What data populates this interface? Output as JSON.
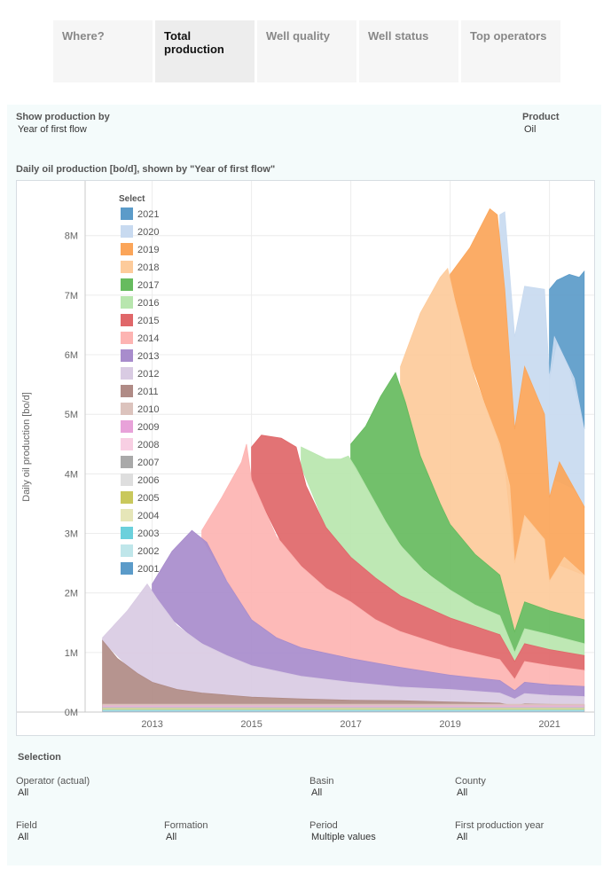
{
  "tabs": [
    {
      "label": "Where?",
      "active": false
    },
    {
      "label": "Total production",
      "active": true
    },
    {
      "label": "Well quality",
      "active": false
    },
    {
      "label": "Well status",
      "active": false
    },
    {
      "label": "Top operators",
      "active": false
    }
  ],
  "controls": {
    "show_by_label": "Show production by",
    "show_by_value": "Year of first flow",
    "product_label": "Product",
    "product_value": "Oil"
  },
  "chart_title": "Daily oil production [bo/d], shown by \"Year of first flow\"",
  "selection": {
    "title": "Selection",
    "filters": [
      {
        "label": "Operator (actual)",
        "value": "All"
      },
      {
        "label": "Basin",
        "value": "All"
      },
      {
        "label": "County",
        "value": "All"
      },
      {
        "label": "Field",
        "value": "All"
      },
      {
        "label": "Formation",
        "value": "All"
      },
      {
        "label": "Period",
        "value": "Multiple values"
      },
      {
        "label": "First production year",
        "value": "All"
      }
    ]
  },
  "chart_data": {
    "type": "area",
    "stacked": true,
    "ylabel": "Daily oil production [bo/d]",
    "xlabel": "",
    "x_unit": "year",
    "xlim": [
      2011.65,
      2021.9
    ],
    "ylim": [
      0,
      8800000
    ],
    "x_ticks": [
      2013,
      2015,
      2017,
      2019,
      2021
    ],
    "x_tick_labels": [
      "2013",
      "2015",
      "2017",
      "2019",
      "2021"
    ],
    "y_ticks": [
      0,
      1000000,
      2000000,
      3000000,
      4000000,
      5000000,
      6000000,
      7000000,
      8000000
    ],
    "y_tick_labels": [
      "0M",
      "1M",
      "2M",
      "3M",
      "4M",
      "5M",
      "6M",
      "7M",
      "8M"
    ],
    "grid": true,
    "legend_title": "Select",
    "legend_position": "top-left",
    "series": [
      {
        "name": "2021",
        "color": "#5b9bc9"
      },
      {
        "name": "2020",
        "color": "#c8daf0"
      },
      {
        "name": "2019",
        "color": "#fba559"
      },
      {
        "name": "2018",
        "color": "#fdcb9b"
      },
      {
        "name": "2017",
        "color": "#66bb5e"
      },
      {
        "name": "2016",
        "color": "#b8e6ae"
      },
      {
        "name": "2015",
        "color": "#e06769"
      },
      {
        "name": "2014",
        "color": "#fdb4b2"
      },
      {
        "name": "2013",
        "color": "#a88ccc"
      },
      {
        "name": "2012",
        "color": "#d9cbe3"
      },
      {
        "name": "2011",
        "color": "#b08b86"
      },
      {
        "name": "2010",
        "color": "#dcc3bd"
      },
      {
        "name": "2009",
        "color": "#e8a2d9"
      },
      {
        "name": "2008",
        "color": "#f8cfe3"
      },
      {
        "name": "2007",
        "color": "#a9a9a9"
      },
      {
        "name": "2006",
        "color": "#dedede"
      },
      {
        "name": "2005",
        "color": "#c9c85c"
      },
      {
        "name": "2004",
        "color": "#e6e6b8"
      },
      {
        "name": "2003",
        "color": "#6bd0dc"
      },
      {
        "name": "2002",
        "color": "#bfe6ea"
      },
      {
        "name": "2001",
        "color": "#5b9bc9"
      }
    ],
    "cumulative_tops": [
      {
        "series": "2011",
        "points": [
          [
            2012.0,
            1200000
          ],
          [
            2012.3,
            900000
          ],
          [
            2012.7,
            650000
          ],
          [
            2013.0,
            500000
          ],
          [
            2013.5,
            380000
          ],
          [
            2014.0,
            320000
          ],
          [
            2015.0,
            250000
          ],
          [
            2016.0,
            220000
          ],
          [
            2017.0,
            200000
          ],
          [
            2018.0,
            190000
          ],
          [
            2019.0,
            170000
          ],
          [
            2020.0,
            150000
          ],
          [
            2020.3,
            100000
          ],
          [
            2020.5,
            140000
          ],
          [
            2021.0,
            130000
          ],
          [
            2021.7,
            120000
          ]
        ]
      },
      {
        "series": "2012",
        "points": [
          [
            2012.0,
            1250000
          ],
          [
            2012.5,
            1700000
          ],
          [
            2012.9,
            2150000
          ],
          [
            2013.1,
            1900000
          ],
          [
            2013.5,
            1450000
          ],
          [
            2014.0,
            1150000
          ],
          [
            2014.5,
            950000
          ],
          [
            2015.0,
            780000
          ],
          [
            2016.0,
            600000
          ],
          [
            2017.0,
            500000
          ],
          [
            2018.0,
            420000
          ],
          [
            2019.0,
            380000
          ],
          [
            2020.0,
            320000
          ],
          [
            2020.3,
            220000
          ],
          [
            2020.5,
            310000
          ],
          [
            2021.0,
            280000
          ],
          [
            2021.7,
            260000
          ]
        ]
      },
      {
        "series": "2013",
        "points": [
          [
            2013.0,
            2150000
          ],
          [
            2013.4,
            2700000
          ],
          [
            2013.8,
            3050000
          ],
          [
            2014.1,
            2850000
          ],
          [
            2014.5,
            2200000
          ],
          [
            2015.0,
            1550000
          ],
          [
            2015.5,
            1250000
          ],
          [
            2016.0,
            1080000
          ],
          [
            2017.0,
            900000
          ],
          [
            2018.0,
            750000
          ],
          [
            2019.0,
            620000
          ],
          [
            2020.0,
            530000
          ],
          [
            2020.3,
            360000
          ],
          [
            2020.5,
            500000
          ],
          [
            2021.0,
            460000
          ],
          [
            2021.7,
            430000
          ]
        ]
      },
      {
        "series": "2014",
        "points": [
          [
            2014.0,
            3050000
          ],
          [
            2014.4,
            3600000
          ],
          [
            2014.8,
            4200000
          ],
          [
            2014.9,
            4500000
          ],
          [
            2015.0,
            3900000
          ],
          [
            2015.5,
            2950000
          ],
          [
            2016.0,
            2450000
          ],
          [
            2016.5,
            2080000
          ],
          [
            2017.0,
            1850000
          ],
          [
            2017.5,
            1550000
          ],
          [
            2018.0,
            1350000
          ],
          [
            2019.0,
            1080000
          ],
          [
            2020.0,
            880000
          ],
          [
            2020.3,
            550000
          ],
          [
            2020.5,
            850000
          ],
          [
            2021.0,
            780000
          ],
          [
            2021.7,
            700000
          ]
        ]
      },
      {
        "series": "2015",
        "points": [
          [
            2015.0,
            4450000
          ],
          [
            2015.2,
            4650000
          ],
          [
            2015.6,
            4600000
          ],
          [
            2015.9,
            4450000
          ],
          [
            2016.1,
            3800000
          ],
          [
            2016.5,
            3100000
          ],
          [
            2017.0,
            2600000
          ],
          [
            2017.5,
            2250000
          ],
          [
            2018.0,
            1950000
          ],
          [
            2019.0,
            1580000
          ],
          [
            2020.0,
            1300000
          ],
          [
            2020.3,
            850000
          ],
          [
            2020.5,
            1150000
          ],
          [
            2021.0,
            1050000
          ],
          [
            2021.7,
            950000
          ]
        ]
      },
      {
        "series": "2016",
        "points": [
          [
            2016.0,
            4450000
          ],
          [
            2016.5,
            4250000
          ],
          [
            2016.8,
            4250000
          ],
          [
            2016.95,
            4300000
          ],
          [
            2017.1,
            4100000
          ],
          [
            2017.3,
            3800000
          ],
          [
            2017.7,
            3200000
          ],
          [
            2018.0,
            2800000
          ],
          [
            2018.5,
            2350000
          ],
          [
            2019.0,
            2050000
          ],
          [
            2019.5,
            1800000
          ],
          [
            2020.0,
            1620000
          ],
          [
            2020.3,
            1000000
          ],
          [
            2020.5,
            1400000
          ],
          [
            2021.0,
            1300000
          ],
          [
            2021.7,
            1150000
          ]
        ]
      },
      {
        "series": "2017",
        "points": [
          [
            2017.0,
            4500000
          ],
          [
            2017.3,
            4800000
          ],
          [
            2017.6,
            5300000
          ],
          [
            2017.9,
            5700000
          ],
          [
            2018.1,
            5200000
          ],
          [
            2018.4,
            4300000
          ],
          [
            2018.8,
            3500000
          ],
          [
            2019.0,
            3150000
          ],
          [
            2019.5,
            2650000
          ],
          [
            2020.0,
            2300000
          ],
          [
            2020.3,
            1350000
          ],
          [
            2020.5,
            1850000
          ],
          [
            2021.0,
            1700000
          ],
          [
            2021.7,
            1550000
          ]
        ]
      },
      {
        "series": "2018",
        "points": [
          [
            2018.0,
            5800000
          ],
          [
            2018.4,
            6700000
          ],
          [
            2018.8,
            7300000
          ],
          [
            2018.95,
            7450000
          ],
          [
            2019.1,
            6900000
          ],
          [
            2019.5,
            5600000
          ],
          [
            2020.0,
            4500000
          ],
          [
            2020.2,
            3800000
          ],
          [
            2020.3,
            2500000
          ],
          [
            2020.5,
            3300000
          ],
          [
            2020.9,
            2900000
          ],
          [
            2021.0,
            2200000
          ],
          [
            2021.3,
            2600000
          ],
          [
            2021.7,
            2300000
          ]
        ]
      },
      {
        "series": "2019",
        "points": [
          [
            2019.0,
            7350000
          ],
          [
            2019.4,
            7800000
          ],
          [
            2019.8,
            8450000
          ],
          [
            2019.95,
            8350000
          ],
          [
            2020.1,
            7100000
          ],
          [
            2020.3,
            4750000
          ],
          [
            2020.5,
            5800000
          ],
          [
            2020.9,
            5000000
          ],
          [
            2021.0,
            3600000
          ],
          [
            2021.2,
            4200000
          ],
          [
            2021.7,
            3450000
          ]
        ]
      },
      {
        "series": "2020",
        "points": [
          [
            2020.0,
            8350000
          ],
          [
            2020.1,
            8400000
          ],
          [
            2020.3,
            6300000
          ],
          [
            2020.5,
            7150000
          ],
          [
            2020.9,
            7100000
          ],
          [
            2021.0,
            5600000
          ],
          [
            2021.1,
            6300000
          ],
          [
            2021.5,
            5600000
          ],
          [
            2021.7,
            4750000
          ]
        ]
      },
      {
        "series": "2021",
        "points": [
          [
            2021.0,
            7100000
          ],
          [
            2021.15,
            7250000
          ],
          [
            2021.4,
            7350000
          ],
          [
            2021.6,
            7300000
          ],
          [
            2021.7,
            7400000
          ]
        ]
      }
    ]
  }
}
